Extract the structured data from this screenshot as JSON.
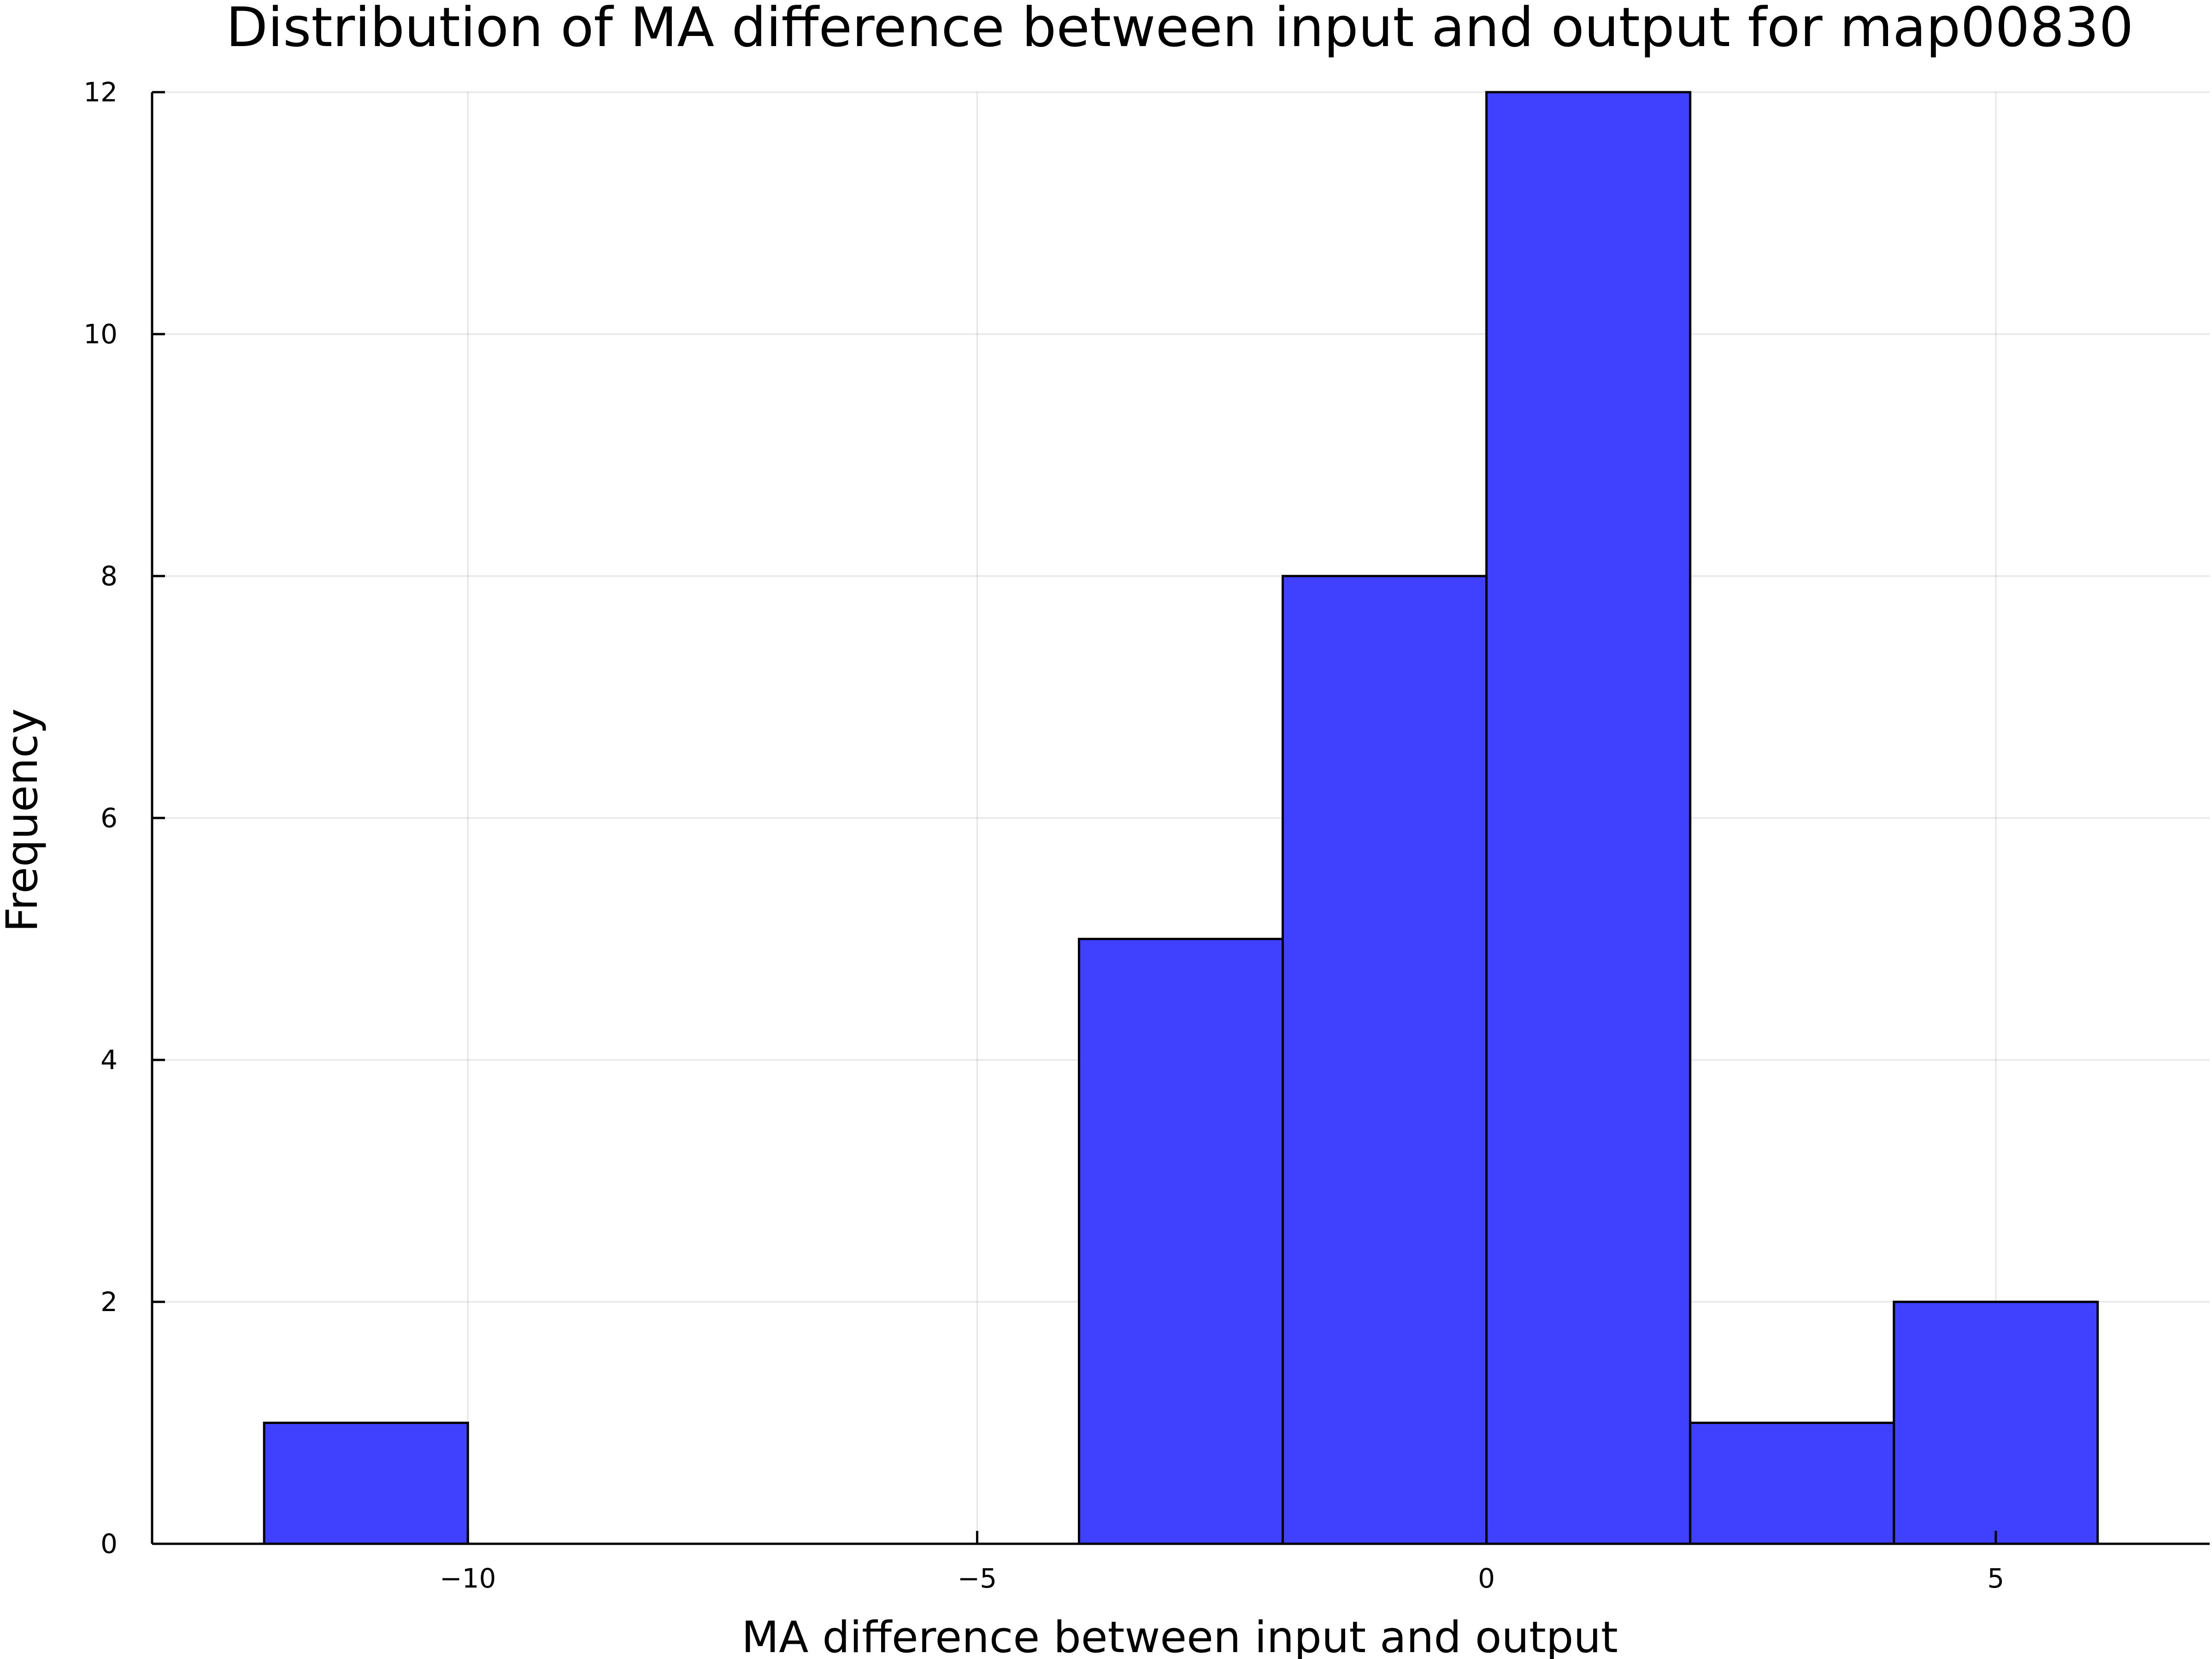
{
  "chart_data": {
    "type": "bar",
    "title": "Distribution of MA difference between input and output for map00830",
    "xlabel": "MA difference between input and output",
    "ylabel": "Frequency",
    "bins": [
      {
        "x0": -12,
        "x1": -10,
        "count": 1
      },
      {
        "x0": -4,
        "x1": -2,
        "count": 5
      },
      {
        "x0": -2,
        "x1": 0,
        "count": 8
      },
      {
        "x0": 0,
        "x1": 2,
        "count": 12
      },
      {
        "x0": 2,
        "x1": 4,
        "count": 1
      },
      {
        "x0": 4,
        "x1": 6,
        "count": 2
      }
    ],
    "xlim": [
      -13.1,
      7.1
    ],
    "ylim": [
      0,
      12
    ],
    "x_ticks": [
      -10,
      -5,
      0,
      5
    ],
    "x_tick_labels": [
      "−10",
      "−5",
      "0",
      "5"
    ],
    "y_ticks": [
      0,
      2,
      4,
      6,
      8,
      10,
      12
    ],
    "y_tick_labels": [
      "0",
      "2",
      "4",
      "6",
      "8",
      "10",
      "12"
    ],
    "bar_color": "#4040ff",
    "bar_edge_color": "#000000",
    "grid": true,
    "legend": "none"
  }
}
